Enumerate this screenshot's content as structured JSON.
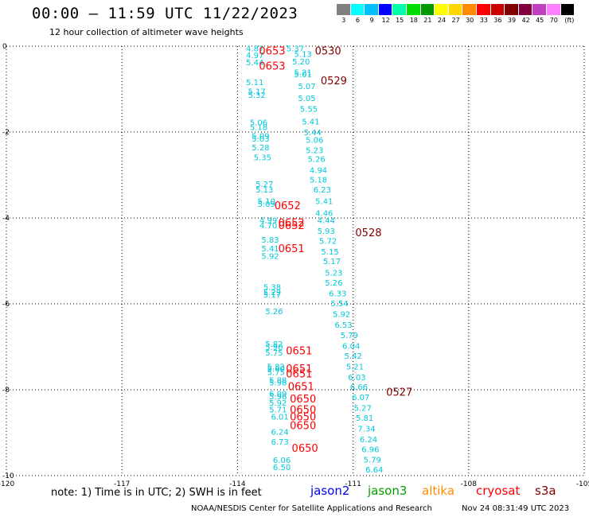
{
  "header": {
    "title": "00:00 – 11:59 UTC 11/22/2023",
    "subtitle": "12 hour collection of altimeter wave heights"
  },
  "legend": {
    "colors": [
      "#808080",
      "#00ffff",
      "#00bfff",
      "#0000ff",
      "#00ffaa",
      "#00dd00",
      "#009900",
      "#ffff00",
      "#ffd700",
      "#ff8c00",
      "#ff0000",
      "#cc0000",
      "#800000",
      "#800040",
      "#c040c0",
      "#ff80ff",
      "#000000"
    ],
    "labels": [
      "3",
      "6",
      "9",
      "12",
      "15",
      "18",
      "21",
      "24",
      "27",
      "30",
      "33",
      "36",
      "39",
      "42",
      "45",
      "70",
      "(ft)"
    ]
  },
  "axes": {
    "x_ticks": [
      "-120",
      "-117",
      "-114",
      "-111",
      "-108",
      "-105"
    ],
    "y_ticks": [
      "0",
      "-2",
      "-4",
      "-6",
      "-8",
      "-10"
    ]
  },
  "map": {
    "lon_min": -120,
    "lon_max": -105,
    "lat_min": -10,
    "lat_max": 0,
    "swh_color": "#00c8d8",
    "tracks": [
      {
        "color": "#00c8d8",
        "obs": [
          {
            "lat": -0.05,
            "lon": -113.55,
            "v": "4.87"
          },
          {
            "lat": -0.2,
            "lon": -113.55,
            "v": "4.97"
          },
          {
            "lat": -0.37,
            "lon": -113.55,
            "v": "5.44"
          },
          {
            "lat": -0.83,
            "lon": -113.55,
            "v": "5.11"
          },
          {
            "lat": -1.05,
            "lon": -113.5,
            "v": "5.17"
          },
          {
            "lat": -1.13,
            "lon": -113.5,
            "v": "5.32"
          },
          {
            "lat": -1.77,
            "lon": -113.45,
            "v": "5.06"
          },
          {
            "lat": -1.88,
            "lon": -113.45,
            "v": "5.18"
          },
          {
            "lat": -2.08,
            "lon": -113.4,
            "v": "5.09"
          },
          {
            "lat": -2.15,
            "lon": -113.4,
            "v": "5.03"
          },
          {
            "lat": -2.35,
            "lon": -113.4,
            "v": "5.28"
          },
          {
            "lat": -2.58,
            "lon": -113.35,
            "v": "5.35"
          },
          {
            "lat": -3.2,
            "lon": -113.3,
            "v": "5.27"
          },
          {
            "lat": -3.33,
            "lon": -113.3,
            "v": "5.13"
          },
          {
            "lat": -3.6,
            "lon": -113.25,
            "v": "5.10"
          },
          {
            "lat": -3.67,
            "lon": -113.25,
            "v": "5.09"
          },
          {
            "lat": -4.05,
            "lon": -113.2,
            "v": "4.99"
          },
          {
            "lat": -4.17,
            "lon": -113.2,
            "v": "4.70"
          },
          {
            "lat": -4.5,
            "lon": -113.15,
            "v": "5.83"
          },
          {
            "lat": -4.7,
            "lon": -113.15,
            "v": "5.41"
          },
          {
            "lat": -4.88,
            "lon": -113.15,
            "v": "5.92"
          },
          {
            "lat": -5.6,
            "lon": -113.1,
            "v": "5.38"
          },
          {
            "lat": -5.72,
            "lon": -113.1,
            "v": "5.29"
          },
          {
            "lat": -5.78,
            "lon": -113.1,
            "v": "5.17"
          },
          {
            "lat": -6.17,
            "lon": -113.05,
            "v": "5.26"
          },
          {
            "lat": -6.93,
            "lon": -113.05,
            "v": "5.82"
          },
          {
            "lat": -7.0,
            "lon": -113.05,
            "v": "5.90"
          },
          {
            "lat": -7.13,
            "lon": -113.05,
            "v": "5.75"
          },
          {
            "lat": -7.45,
            "lon": -113.0,
            "v": "5.82"
          },
          {
            "lat": -7.5,
            "lon": -113.0,
            "v": "5.60"
          },
          {
            "lat": -7.58,
            "lon": -113.0,
            "v": "5.75"
          },
          {
            "lat": -7.77,
            "lon": -112.95,
            "v": "5.88"
          },
          {
            "lat": -7.82,
            "lon": -112.95,
            "v": "5.98"
          },
          {
            "lat": -8.08,
            "lon": -112.95,
            "v": "6.09"
          },
          {
            "lat": -8.15,
            "lon": -112.95,
            "v": "5.96"
          },
          {
            "lat": -8.3,
            "lon": -112.95,
            "v": "5.92"
          },
          {
            "lat": -8.45,
            "lon": -112.95,
            "v": "5.71"
          },
          {
            "lat": -8.62,
            "lon": -112.9,
            "v": "6.01"
          },
          {
            "lat": -8.97,
            "lon": -112.9,
            "v": "6.24"
          },
          {
            "lat": -9.2,
            "lon": -112.9,
            "v": "6.73"
          },
          {
            "lat": -9.63,
            "lon": -112.85,
            "v": "6.06"
          },
          {
            "lat": -9.8,
            "lon": -112.85,
            "v": "6.50"
          }
        ]
      },
      {
        "color": "#00c8d8",
        "obs": [
          {
            "lat": -0.05,
            "lon": -112.5,
            "v": "5.37"
          },
          {
            "lat": -0.18,
            "lon": -112.3,
            "v": "5.13"
          },
          {
            "lat": -0.35,
            "lon": -112.35,
            "v": "5.20"
          },
          {
            "lat": -0.6,
            "lon": -112.3,
            "v": "5.21"
          },
          {
            "lat": -0.65,
            "lon": -112.3,
            "v": "5.01"
          },
          {
            "lat": -0.93,
            "lon": -112.2,
            "v": "5.07"
          },
          {
            "lat": -1.2,
            "lon": -112.2,
            "v": "5.05"
          },
          {
            "lat": -1.45,
            "lon": -112.15,
            "v": "5.55"
          },
          {
            "lat": -1.75,
            "lon": -112.1,
            "v": "5.41"
          },
          {
            "lat": -2.0,
            "lon": -112.05,
            "v": "5.44"
          },
          {
            "lat": -2.18,
            "lon": -112.0,
            "v": "5.06"
          },
          {
            "lat": -2.42,
            "lon": -112.0,
            "v": "5.23"
          },
          {
            "lat": -2.62,
            "lon": -111.95,
            "v": "5.26"
          },
          {
            "lat": -2.88,
            "lon": -111.9,
            "v": "4.94"
          },
          {
            "lat": -3.1,
            "lon": -111.9,
            "v": "5.18"
          },
          {
            "lat": -3.33,
            "lon": -111.8,
            "v": "6.23"
          },
          {
            "lat": -3.6,
            "lon": -111.75,
            "v": "5.41"
          },
          {
            "lat": -3.88,
            "lon": -111.75,
            "v": "4.46"
          },
          {
            "lat": -4.05,
            "lon": -111.7,
            "v": "4.44"
          },
          {
            "lat": -4.3,
            "lon": -111.7,
            "v": "5.93"
          },
          {
            "lat": -4.53,
            "lon": -111.65,
            "v": "5.72"
          },
          {
            "lat": -4.78,
            "lon": -111.6,
            "v": "5.15"
          },
          {
            "lat": -5.0,
            "lon": -111.55,
            "v": "5.17"
          },
          {
            "lat": -5.27,
            "lon": -111.5,
            "v": "5.23"
          },
          {
            "lat": -5.5,
            "lon": -111.5,
            "v": "5.26"
          },
          {
            "lat": -5.75,
            "lon": -111.4,
            "v": "6.33"
          },
          {
            "lat": -5.98,
            "lon": -111.35,
            "v": "5.54"
          },
          {
            "lat": -6.23,
            "lon": -111.3,
            "v": "5.92"
          },
          {
            "lat": -6.48,
            "lon": -111.25,
            "v": "6.53"
          },
          {
            "lat": -6.72,
            "lon": -111.1,
            "v": "5.79"
          },
          {
            "lat": -6.97,
            "lon": -111.05,
            "v": "6.04"
          },
          {
            "lat": -7.2,
            "lon": -111.0,
            "v": "5.42"
          },
          {
            "lat": -7.45,
            "lon": -110.95,
            "v": "5.21"
          },
          {
            "lat": -7.7,
            "lon": -110.9,
            "v": "6.03"
          },
          {
            "lat": -7.93,
            "lon": -110.85,
            "v": "6.66"
          },
          {
            "lat": -8.17,
            "lon": -110.8,
            "v": "6.07"
          },
          {
            "lat": -8.42,
            "lon": -110.75,
            "v": "5.27"
          },
          {
            "lat": -8.65,
            "lon": -110.7,
            "v": "5.81"
          },
          {
            "lat": -8.9,
            "lon": -110.65,
            "v": "7.34"
          },
          {
            "lat": -9.15,
            "lon": -110.6,
            "v": "6.24"
          },
          {
            "lat": -9.38,
            "lon": -110.55,
            "v": "6.96"
          },
          {
            "lat": -9.62,
            "lon": -110.5,
            "v": "5.79"
          },
          {
            "lat": -9.85,
            "lon": -110.45,
            "v": "6.64"
          }
        ]
      }
    ],
    "times": [
      {
        "lat": -0.1,
        "lon": -113.1,
        "t": "0653",
        "color": "#ff0000"
      },
      {
        "lat": -0.1,
        "lon": -111.65,
        "t": "0530",
        "color": "#800000"
      },
      {
        "lat": -0.45,
        "lon": -113.1,
        "t": "0653",
        "color": "#ff0000"
      },
      {
        "lat": -0.8,
        "lon": -111.5,
        "t": "0529",
        "color": "#800000"
      },
      {
        "lat": -3.7,
        "lon": -112.7,
        "t": "0652",
        "color": "#ff0000"
      },
      {
        "lat": -4.1,
        "lon": -112.6,
        "t": "0652",
        "color": "#ff0000"
      },
      {
        "lat": -4.17,
        "lon": -112.6,
        "t": "0652",
        "color": "#ff0000"
      },
      {
        "lat": -4.33,
        "lon": -110.6,
        "t": "0528",
        "color": "#800000"
      },
      {
        "lat": -4.7,
        "lon": -112.6,
        "t": "0651",
        "color": "#ff0000"
      },
      {
        "lat": -7.08,
        "lon": -112.4,
        "t": "0651",
        "color": "#ff0000"
      },
      {
        "lat": -7.5,
        "lon": -112.4,
        "t": "0651",
        "color": "#ff0000"
      },
      {
        "lat": -7.62,
        "lon": -112.4,
        "t": "0651",
        "color": "#ff0000"
      },
      {
        "lat": -7.92,
        "lon": -112.35,
        "t": "0651",
        "color": "#ff0000"
      },
      {
        "lat": -8.05,
        "lon": -109.8,
        "t": "0527",
        "color": "#800000"
      },
      {
        "lat": -8.2,
        "lon": -112.3,
        "t": "0650",
        "color": "#ff0000"
      },
      {
        "lat": -8.45,
        "lon": -112.3,
        "t": "0650",
        "color": "#ff0000"
      },
      {
        "lat": -8.62,
        "lon": -112.3,
        "t": "0650",
        "color": "#ff0000"
      },
      {
        "lat": -8.82,
        "lon": -112.3,
        "t": "0650",
        "color": "#ff0000"
      },
      {
        "lat": -9.35,
        "lon": -112.25,
        "t": "0650",
        "color": "#ff0000"
      }
    ]
  },
  "footer": {
    "note": "note: 1) Time is in UTC; 2) SWH is in feet",
    "satellites": [
      {
        "name": "jason2",
        "color": "#0000ff"
      },
      {
        "name": "jason3",
        "color": "#00a000"
      },
      {
        "name": "altika",
        "color": "#ff8c00"
      },
      {
        "name": "cryosat",
        "color": "#ff0000"
      },
      {
        "name": "s3a",
        "color": "#800000"
      }
    ],
    "credit": "NOAA/NESDIS Center for Satellite Applications and Research",
    "timestamp": "Nov 24 08:31:49 UTC 2023"
  }
}
